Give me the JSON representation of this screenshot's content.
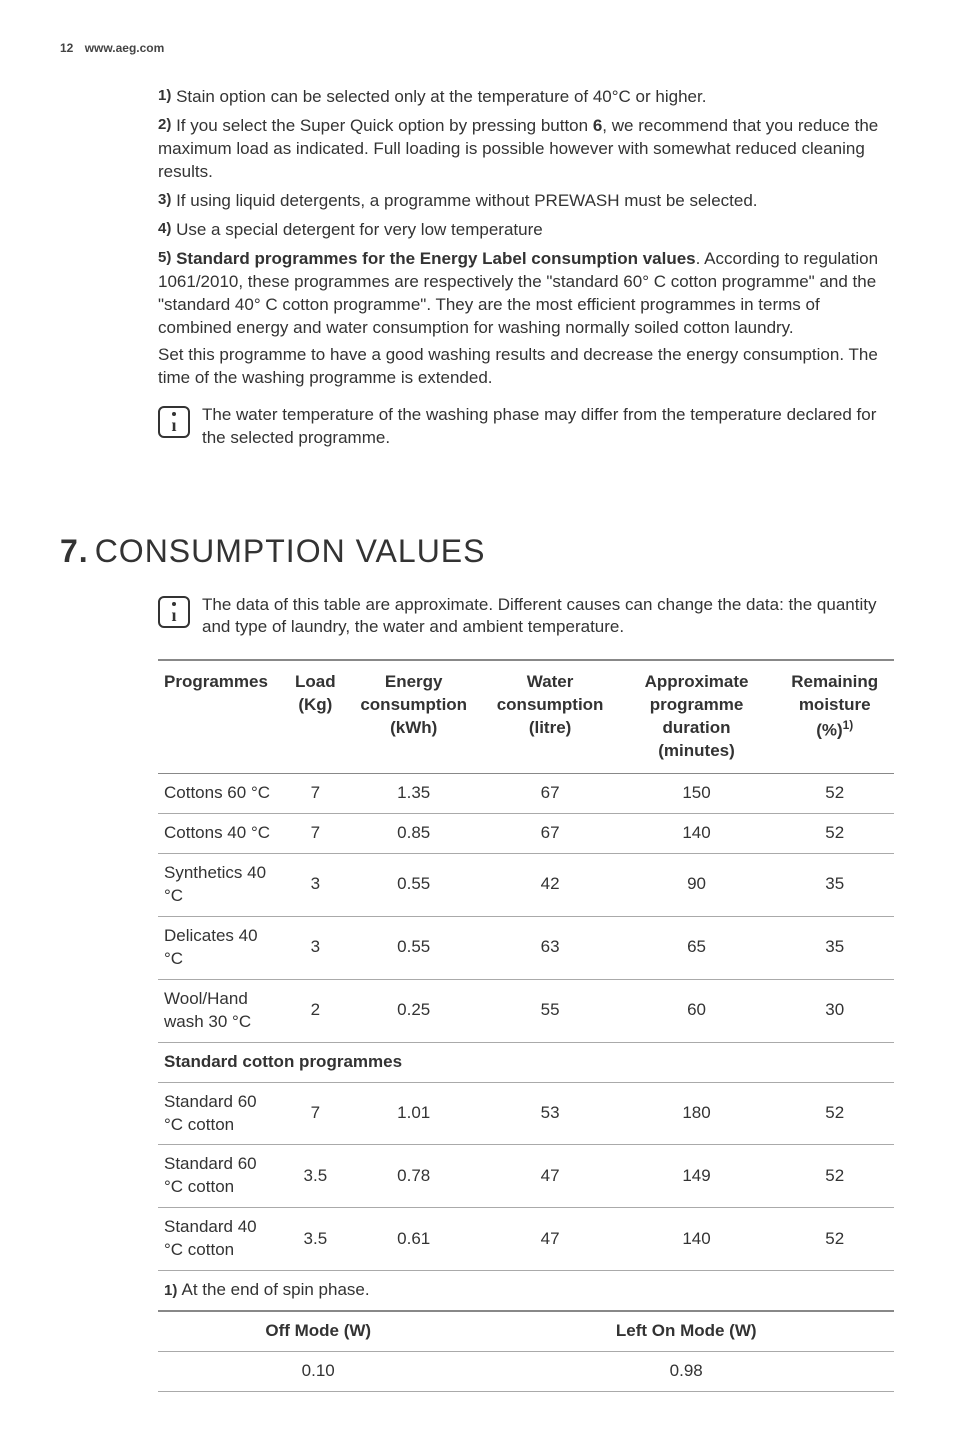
{
  "header": {
    "page_num": "12",
    "site": "www.aeg.com"
  },
  "footnotes": [
    {
      "num": "1)",
      "text": "Stain option can be selected only at the temperature of 40°C or higher."
    },
    {
      "num": "2)",
      "pre": "If you select the Super Quick option by pressing button ",
      "bold": "6",
      "post": ", we recommend that you reduce the maximum load as indicated. Full loading is possible however with somewhat reduced cleaning results."
    },
    {
      "num": "3)",
      "text": "If using liquid detergents, a programme without PREWASH must be selected."
    },
    {
      "num": "4)",
      "text": "Use a special detergent for very low temperature"
    },
    {
      "num": "5)",
      "bold": "Standard programmes for the Energy Label consumption values",
      "post": ". According to regulation 1061/2010, these programmes are respectively the \"standard 60° C cotton programme\" and the \"standard 40° C cotton programme\". They are the most efficient programmes in terms of combined energy and water consumption for washing normally soiled cotton laundry.",
      "para2": "Set this programme to have a good washing results and decrease the energy consumption. The time of the washing programme is extended."
    }
  ],
  "info1": "The water temperature of the washing phase may differ from the temperature declared for the selected programme.",
  "section": {
    "num": "7.",
    "title": "CONSUMPTION VALUES"
  },
  "info2": "The data of this table are approximate. Different causes can change the data: the quantity and type of laundry, the water and ambient temperature.",
  "table": {
    "columns": [
      "Programmes",
      "Load (Kg)",
      "Energy consumption (kWh)",
      "Water consumption (litre)",
      "Approximate programme duration (minutes)",
      "Remaining moisture (%)"
    ],
    "col5_sup": "1)",
    "rows": [
      {
        "cells": [
          "Cottons 60 °C",
          "7",
          "1.35",
          "67",
          "150",
          "52"
        ]
      },
      {
        "cells": [
          "Cottons 40 °C",
          "7",
          "0.85",
          "67",
          "140",
          "52"
        ]
      },
      {
        "cells": [
          "Synthetics 40 °C",
          "3",
          "0.55",
          "42",
          "90",
          "35"
        ]
      },
      {
        "cells": [
          "Delicates 40 °C",
          "3",
          "0.55",
          "63",
          "65",
          "35"
        ]
      },
      {
        "cells": [
          "Wool/Hand wash 30 °C",
          "2",
          "0.25",
          "55",
          "60",
          "30"
        ]
      }
    ],
    "section_row": "Standard cotton programmes",
    "rows2": [
      {
        "cells": [
          "Standard 60 °C cotton",
          "7",
          "1.01",
          "53",
          "180",
          "52"
        ]
      },
      {
        "cells": [
          "Standard 60 °C cotton",
          "3.5",
          "0.78",
          "47",
          "149",
          "52"
        ]
      },
      {
        "cells": [
          "Standard 40 °C cotton",
          "3.5",
          "0.61",
          "47",
          "140",
          "52"
        ]
      }
    ],
    "footnote": {
      "num": "1)",
      "text": "At the end of spin phase."
    }
  },
  "mode_table": {
    "headers": [
      "Off Mode (W)",
      "Left On Mode (W)"
    ],
    "values": [
      "0.10",
      "0.98"
    ]
  }
}
